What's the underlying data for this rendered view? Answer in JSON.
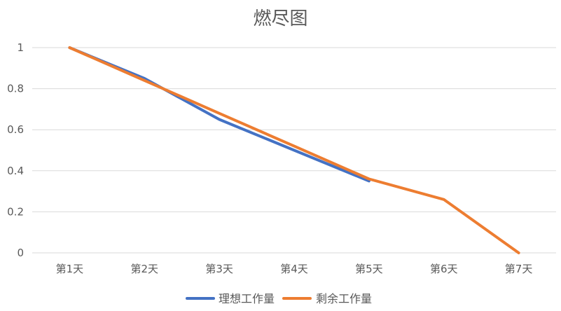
{
  "chart_data": {
    "type": "line",
    "title": "燃尽图",
    "categories": [
      "第1天",
      "第2天",
      "第3天",
      "第4天",
      "第5天",
      "第6天",
      "第7天"
    ],
    "ylim": [
      0,
      1
    ],
    "yticks": [
      0,
      0.2,
      0.4,
      0.6,
      0.8,
      1
    ],
    "ytick_labels": [
      "0",
      "0.2",
      "0.4",
      "0.6",
      "0.8",
      "1"
    ],
    "grid": true,
    "legend_position": "bottom",
    "series": [
      {
        "name": "理想工作量",
        "color": "#4472C4",
        "values": [
          1,
          0.85,
          0.65,
          0.5,
          0.35,
          null,
          null
        ]
      },
      {
        "name": "剩余工作量",
        "color": "#ED7D31",
        "values": [
          1,
          0.84,
          0.68,
          0.52,
          0.36,
          0.26,
          0
        ]
      }
    ]
  }
}
